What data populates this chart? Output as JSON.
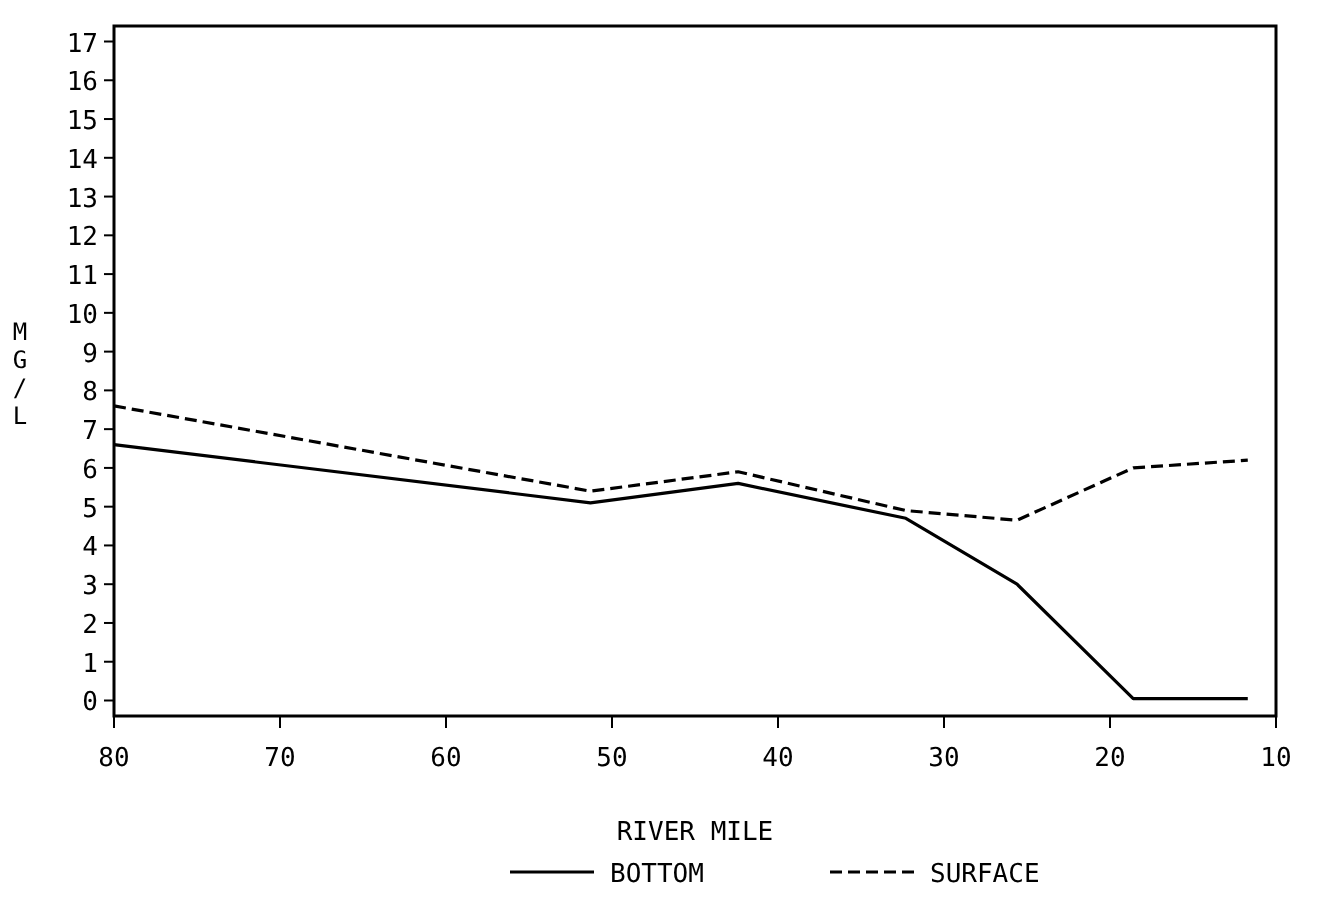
{
  "chart_data": {
    "type": "line",
    "xlabel": "RIVER MILE",
    "ylabel": "MG/L",
    "x": [
      80,
      51.3,
      42.4,
      32.3,
      25.6,
      18.6,
      11.7
    ],
    "xlim": [
      80,
      10
    ],
    "xticks": [
      80,
      70,
      60,
      50,
      40,
      30,
      20,
      10
    ],
    "ylim": [
      -0.4,
      17.4
    ],
    "yticks": [
      0,
      1,
      2,
      3,
      4,
      5,
      6,
      7,
      8,
      9,
      10,
      11,
      12,
      13,
      14,
      15,
      16,
      17
    ],
    "series": [
      {
        "name": "BOTTOM",
        "color": "#000000",
        "line_style": "solid",
        "values": [
          6.6,
          5.1,
          5.6,
          4.7,
          3.0,
          0.05,
          0.05
        ]
      },
      {
        "name": "SURFACE",
        "color": "#000000",
        "line_style": "dashed",
        "values": [
          7.6,
          5.4,
          5.9,
          4.9,
          4.65,
          6.0,
          6.2
        ]
      }
    ],
    "legend": "bottom",
    "grid": false,
    "marker": "none"
  }
}
